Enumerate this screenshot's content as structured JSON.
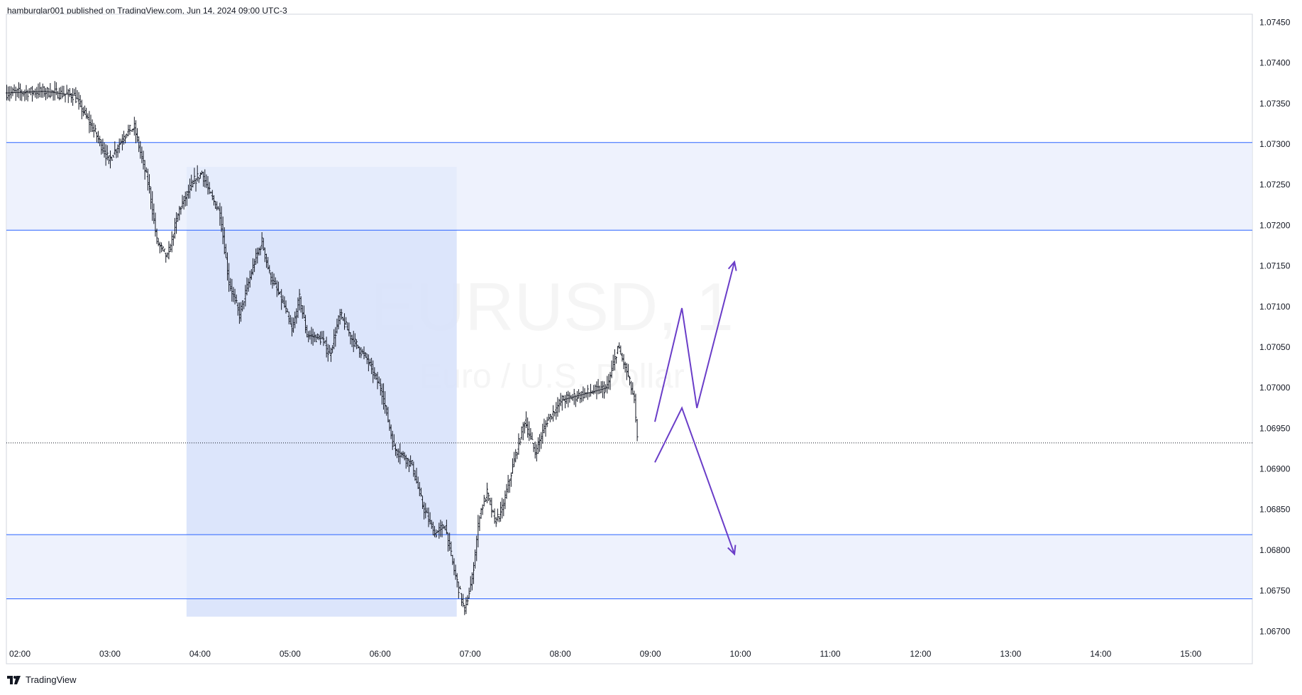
{
  "header": {
    "publish_line": "hamburglar001 published on TradingView.com, Jun 14, 2024 09:00 UTC-3"
  },
  "watermark": {
    "symbol": "EURUSD, 1",
    "description": "Euro / U.S. Dollar"
  },
  "footer": {
    "brand": "TradingView",
    "logo_icon": "tradingview-logo-icon"
  },
  "colors": {
    "zone_fill": "#e8eefc",
    "range_fill": "#d6e1fa",
    "zone_border": "#2962ff",
    "candle": "#131722",
    "arrow": "#6a3dc8",
    "axis": "#d1d4dc"
  },
  "chart_data": {
    "type": "bar",
    "title": "",
    "symbol": "EURUSD",
    "timeframe": "1",
    "x_tick_labels": [
      "02:00",
      "03:00",
      "04:00",
      "05:00",
      "06:00",
      "07:00",
      "08:00",
      "09:00",
      "10:00",
      "11:00",
      "12:00",
      "13:00",
      "14:00",
      "15:00"
    ],
    "y_tick_labels": [
      "1.07450",
      "1.07400",
      "1.07350",
      "1.07300",
      "1.07250",
      "1.07200",
      "1.07150",
      "1.07100",
      "1.07050",
      "1.07000",
      "1.06950",
      "1.06900",
      "1.06850",
      "1.06800",
      "1.06750",
      "1.06700"
    ],
    "ylim": [
      1.0666,
      1.0746
    ],
    "xlim": [
      "02:00",
      "15:50"
    ],
    "price_path": [
      {
        "t": "02:00",
        "p": 1.07363
      },
      {
        "t": "02:25",
        "p": 1.07365
      },
      {
        "t": "02:45",
        "p": 1.0736
      },
      {
        "t": "03:00",
        "p": 1.0731
      },
      {
        "t": "03:08",
        "p": 1.0728
      },
      {
        "t": "03:20",
        "p": 1.07315
      },
      {
        "t": "03:25",
        "p": 1.0732
      },
      {
        "t": "03:35",
        "p": 1.07245
      },
      {
        "t": "03:40",
        "p": 1.0718
      },
      {
        "t": "03:47",
        "p": 1.0716
      },
      {
        "t": "03:55",
        "p": 1.0722
      },
      {
        "t": "04:05",
        "p": 1.07255
      },
      {
        "t": "04:10",
        "p": 1.07265
      },
      {
        "t": "04:15",
        "p": 1.0724
      },
      {
        "t": "04:22",
        "p": 1.07215
      },
      {
        "t": "04:28",
        "p": 1.0713
      },
      {
        "t": "04:35",
        "p": 1.0709
      },
      {
        "t": "04:45",
        "p": 1.07155
      },
      {
        "t": "04:50",
        "p": 1.0718
      },
      {
        "t": "04:55",
        "p": 1.0714
      },
      {
        "t": "05:05",
        "p": 1.071
      },
      {
        "t": "05:10",
        "p": 1.0707
      },
      {
        "t": "05:15",
        "p": 1.0711
      },
      {
        "t": "05:20",
        "p": 1.07065
      },
      {
        "t": "05:30",
        "p": 1.0706
      },
      {
        "t": "05:35",
        "p": 1.0704
      },
      {
        "t": "05:42",
        "p": 1.0709
      },
      {
        "t": "05:50",
        "p": 1.0706
      },
      {
        "t": "06:00",
        "p": 1.07035
      },
      {
        "t": "06:10",
        "p": 1.06995
      },
      {
        "t": "06:18",
        "p": 1.06925
      },
      {
        "t": "06:25",
        "p": 1.06915
      },
      {
        "t": "06:30",
        "p": 1.06905
      },
      {
        "t": "06:37",
        "p": 1.06855
      },
      {
        "t": "06:45",
        "p": 1.0682
      },
      {
        "t": "06:52",
        "p": 1.0683
      },
      {
        "t": "06:58",
        "p": 1.06775
      },
      {
        "t": "07:05",
        "p": 1.06725
      },
      {
        "t": "07:10",
        "p": 1.06765
      },
      {
        "t": "07:15",
        "p": 1.06845
      },
      {
        "t": "07:20",
        "p": 1.0687
      },
      {
        "t": "07:25",
        "p": 1.06835
      },
      {
        "t": "07:30",
        "p": 1.0685
      },
      {
        "t": "07:38",
        "p": 1.0691
      },
      {
        "t": "07:45",
        "p": 1.0696
      },
      {
        "t": "07:52",
        "p": 1.0692
      },
      {
        "t": "08:00",
        "p": 1.0696
      },
      {
        "t": "08:10",
        "p": 1.06985
      },
      {
        "t": "08:20",
        "p": 1.0699
      },
      {
        "t": "08:30",
        "p": 1.06995
      },
      {
        "t": "08:40",
        "p": 1.07
      },
      {
        "t": "08:47",
        "p": 1.0705
      },
      {
        "t": "08:53",
        "p": 1.0702
      },
      {
        "t": "08:58",
        "p": 1.06985
      },
      {
        "t": "09:00",
        "p": 1.06935
      }
    ],
    "last_price": 1.06932,
    "zones": [
      {
        "name": "supply-zone",
        "top": 1.07302,
        "bottom": 1.07194
      },
      {
        "name": "demand-zone",
        "top": 1.06819,
        "bottom": 1.0674
      }
    ],
    "highlight_range": {
      "start": "04:00",
      "end": "07:00",
      "top": 1.07272,
      "bottom": 1.06718
    },
    "projections": [
      {
        "name": "bullish-path",
        "points": [
          [
            "09:12",
            1.06958
          ],
          [
            "09:30",
            1.07098
          ],
          [
            "09:40",
            1.06975
          ],
          [
            "10:05",
            1.07155
          ]
        ]
      },
      {
        "name": "bearish-path",
        "points": [
          [
            "09:12",
            1.06908
          ],
          [
            "09:30",
            1.06975
          ],
          [
            "10:05",
            1.06795
          ]
        ]
      }
    ]
  }
}
